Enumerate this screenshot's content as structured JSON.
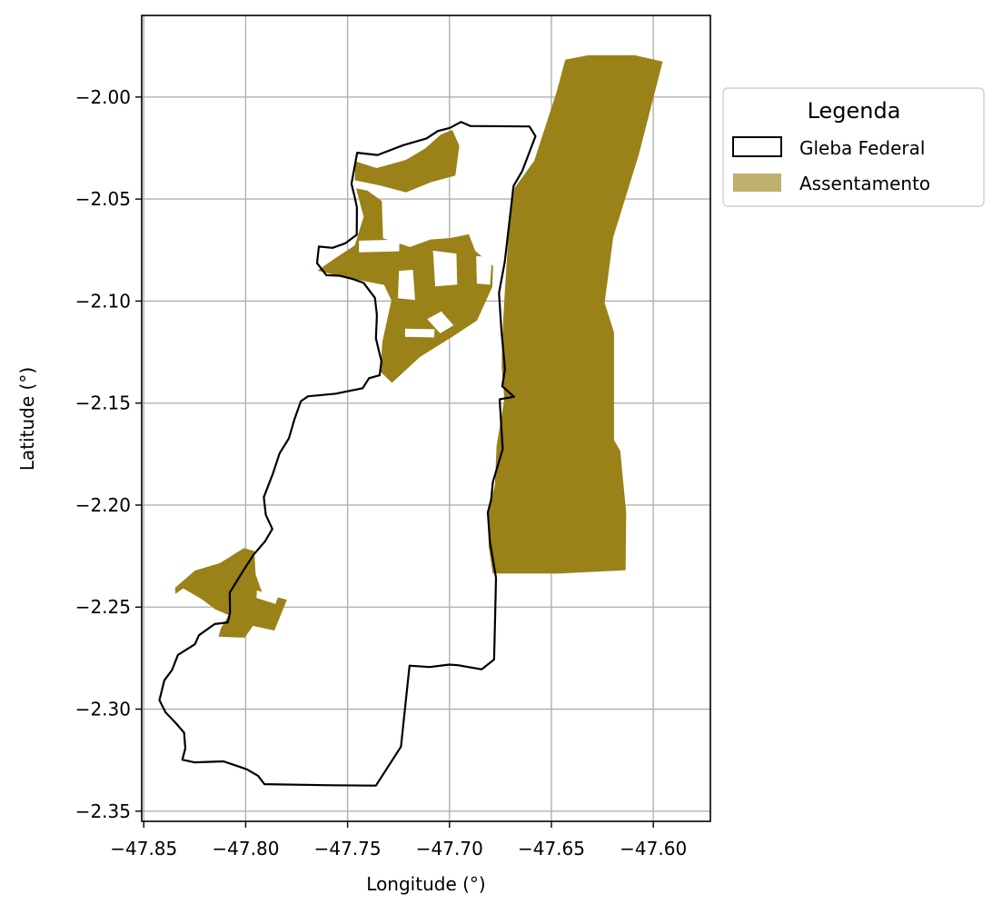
{
  "chart_data": {
    "type": "map",
    "xlabel": "Longitude (°)",
    "ylabel": "Latitude (°)",
    "xlim": [
      -47.851,
      -47.572
    ],
    "ylim": [
      -2.355,
      -1.96
    ],
    "xticks": [
      -47.85,
      -47.8,
      -47.75,
      -47.7,
      -47.65,
      -47.6
    ],
    "xtick_labels": [
      "−47.85",
      "−47.80",
      "−47.75",
      "−47.70",
      "−47.65",
      "−47.60"
    ],
    "yticks": [
      -2.0,
      -2.05,
      -2.1,
      -2.15,
      -2.2,
      -2.25,
      -2.3,
      -2.35
    ],
    "ytick_labels": [
      "−2.00",
      "−2.05",
      "−2.10",
      "−2.15",
      "−2.20",
      "−2.25",
      "−2.30",
      "−2.35"
    ],
    "grid": true,
    "legend": {
      "title": "Legenda",
      "placement": "outside-right-top",
      "entries": [
        {
          "label": "Gleba Federal",
          "style": "outline",
          "color": "#000000"
        },
        {
          "label": "Assentamento",
          "style": "fill",
          "color": "#bfb06e"
        }
      ]
    },
    "colors": {
      "assentamento_fill": "#9a8118",
      "gleba_edge": "#000000",
      "grid": "#b0b0b0"
    },
    "gleba_federal": [
      [
        -47.7453,
        -2.0273
      ],
      [
        -47.7353,
        -2.0284
      ],
      [
        -47.7227,
        -2.0236
      ],
      [
        -47.7113,
        -2.0203
      ],
      [
        -47.7058,
        -2.0167
      ],
      [
        -47.6997,
        -2.0151
      ],
      [
        -47.6944,
        -2.0122
      ],
      [
        -47.6897,
        -2.0142
      ],
      [
        -47.6608,
        -2.0144
      ],
      [
        -47.6578,
        -2.0192
      ],
      [
        -47.6644,
        -2.0364
      ],
      [
        -47.6686,
        -2.0436
      ],
      [
        -47.6729,
        -2.0809
      ],
      [
        -47.6757,
        -2.0961
      ],
      [
        -47.6745,
        -2.1146
      ],
      [
        -47.6731,
        -2.1298
      ],
      [
        -47.6728,
        -2.1336
      ],
      [
        -47.6741,
        -2.1418
      ],
      [
        -47.6683,
        -2.1469
      ],
      [
        -47.6754,
        -2.1481
      ],
      [
        -47.6739,
        -2.1725
      ],
      [
        -47.6787,
        -2.1886
      ],
      [
        -47.6796,
        -2.1974
      ],
      [
        -47.6812,
        -2.2036
      ],
      [
        -47.6802,
        -2.2176
      ],
      [
        -47.6772,
        -2.2356
      ],
      [
        -47.6777,
        -2.2592
      ],
      [
        -47.6781,
        -2.2757
      ],
      [
        -47.6842,
        -2.2805
      ],
      [
        -47.6958,
        -2.2785
      ],
      [
        -47.7002,
        -2.2782
      ],
      [
        -47.7097,
        -2.2794
      ],
      [
        -47.7196,
        -2.2787
      ],
      [
        -47.7238,
        -2.3184
      ],
      [
        -47.7361,
        -2.3375
      ],
      [
        -47.7578,
        -2.3373
      ],
      [
        -47.7908,
        -2.3368
      ],
      [
        -47.7939,
        -2.3327
      ],
      [
        -47.7995,
        -2.3295
      ],
      [
        -47.8109,
        -2.3256
      ],
      [
        -47.8252,
        -2.3261
      ],
      [
        -47.8311,
        -2.3248
      ],
      [
        -47.8296,
        -2.3193
      ],
      [
        -47.8302,
        -2.3116
      ],
      [
        -47.8344,
        -2.3067
      ],
      [
        -47.8393,
        -2.3016
      ],
      [
        -47.8423,
        -2.2956
      ],
      [
        -47.8399,
        -2.2859
      ],
      [
        -47.8361,
        -2.2808
      ],
      [
        -47.8332,
        -2.2734
      ],
      [
        -47.8249,
        -2.2682
      ],
      [
        -47.8229,
        -2.2638
      ],
      [
        -47.8152,
        -2.2583
      ],
      [
        -47.8088,
        -2.2575
      ],
      [
        -47.8077,
        -2.2528
      ],
      [
        -47.8078,
        -2.2429
      ],
      [
        -47.8026,
        -2.2344
      ],
      [
        -47.7962,
        -2.2244
      ],
      [
        -47.7905,
        -2.2178
      ],
      [
        -47.7869,
        -2.2117
      ],
      [
        -47.7901,
        -2.2048
      ],
      [
        -47.7911,
        -2.1961
      ],
      [
        -47.7867,
        -2.1847
      ],
      [
        -47.7834,
        -2.1747
      ],
      [
        -47.7788,
        -2.1673
      ],
      [
        -47.7761,
        -2.158
      ],
      [
        -47.7729,
        -2.1491
      ],
      [
        -47.7694,
        -2.1467
      ],
      [
        -47.7558,
        -2.1454
      ],
      [
        -47.7426,
        -2.1427
      ],
      [
        -47.7395,
        -2.1378
      ],
      [
        -47.7343,
        -2.1364
      ],
      [
        -47.7334,
        -2.1296
      ],
      [
        -47.7361,
        -2.1183
      ],
      [
        -47.7356,
        -2.1069
      ],
      [
        -47.7366,
        -2.0984
      ],
      [
        -47.7421,
        -2.0911
      ],
      [
        -47.7475,
        -2.0892
      ],
      [
        -47.7539,
        -2.0876
      ],
      [
        -47.7604,
        -2.0873
      ],
      [
        -47.765,
        -2.0814
      ],
      [
        -47.7641,
        -2.0733
      ],
      [
        -47.7574,
        -2.0739
      ],
      [
        -47.7511,
        -2.0717
      ],
      [
        -47.7455,
        -2.0675
      ],
      [
        -47.7454,
        -2.0541
      ],
      [
        -47.7466,
        -2.0485
      ],
      [
        -47.7481,
        -2.0425
      ],
      [
        -47.7453,
        -2.0273
      ]
    ],
    "assentamento": [
      [
        [
          -47.6584,
          -2.0312
        ],
        [
          -47.6474,
          -1.9974
        ],
        [
          -47.6432,
          -1.9817
        ],
        [
          -47.6321,
          -1.9795
        ],
        [
          -47.6092,
          -1.9795
        ],
        [
          -47.5954,
          -1.9826
        ],
        [
          -47.6071,
          -2.0282
        ],
        [
          -47.6197,
          -2.0688
        ],
        [
          -47.6239,
          -2.1009
        ],
        [
          -47.6193,
          -2.1154
        ],
        [
          -47.6193,
          -2.1681
        ],
        [
          -47.6162,
          -2.1735
        ],
        [
          -47.6133,
          -2.2038
        ],
        [
          -47.6136,
          -2.2319
        ],
        [
          -47.6456,
          -2.2335
        ],
        [
          -47.6788,
          -2.2335
        ],
        [
          -47.6808,
          -2.2201
        ],
        [
          -47.6808,
          -2.2036
        ],
        [
          -47.6777,
          -2.1902
        ],
        [
          -47.6769,
          -2.1711
        ],
        [
          -47.6731,
          -2.1479
        ],
        [
          -47.6744,
          -2.1322
        ],
        [
          -47.6741,
          -2.1175
        ],
        [
          -47.6729,
          -2.096
        ],
        [
          -47.6707,
          -2.0627
        ],
        [
          -47.6681,
          -2.0446
        ]
      ],
      [
        [
          -47.7461,
          -2.0315
        ],
        [
          -47.7358,
          -2.0348
        ],
        [
          -47.7214,
          -2.0308
        ],
        [
          -47.7118,
          -2.0251
        ],
        [
          -47.7043,
          -2.0184
        ],
        [
          -47.6986,
          -2.0161
        ],
        [
          -47.6952,
          -2.0238
        ],
        [
          -47.6971,
          -2.0385
        ],
        [
          -47.7091,
          -2.0417
        ],
        [
          -47.7213,
          -2.0467
        ],
        [
          -47.7338,
          -2.0434
        ],
        [
          -47.7465,
          -2.0408
        ]
      ],
      [
        [
          -47.7458,
          -2.0448
        ],
        [
          -47.7421,
          -2.0587
        ],
        [
          -47.7465,
          -2.0727
        ],
        [
          -47.7574,
          -2.0799
        ],
        [
          -47.7647,
          -2.0851
        ],
        [
          -47.752,
          -2.0882
        ],
        [
          -47.7321,
          -2.0921
        ],
        [
          -47.7285,
          -2.0997
        ],
        [
          -47.7329,
          -2.1197
        ],
        [
          -47.734,
          -2.1345
        ],
        [
          -47.7282,
          -2.1401
        ],
        [
          -47.7145,
          -2.1274
        ],
        [
          -47.6983,
          -2.1173
        ],
        [
          -47.6865,
          -2.1095
        ],
        [
          -47.679,
          -2.093
        ],
        [
          -47.6786,
          -2.0828
        ],
        [
          -47.6874,
          -2.0754
        ],
        [
          -47.6905,
          -2.0673
        ],
        [
          -47.6996,
          -2.0691
        ],
        [
          -47.7093,
          -2.0698
        ],
        [
          -47.7194,
          -2.0735
        ],
        [
          -47.7326,
          -2.0692
        ],
        [
          -47.7332,
          -2.051
        ],
        [
          -47.7403,
          -2.0458
        ]
      ],
      [
        [
          -47.8009,
          -2.2211
        ],
        [
          -47.8127,
          -2.2285
        ],
        [
          -47.8249,
          -2.2321
        ],
        [
          -47.8346,
          -2.2405
        ],
        [
          -47.8345,
          -2.2435
        ],
        [
          -47.8306,
          -2.2408
        ],
        [
          -47.8213,
          -2.2463
        ],
        [
          -47.8147,
          -2.2512
        ],
        [
          -47.8083,
          -2.2539
        ],
        [
          -47.8122,
          -2.2604
        ],
        [
          -47.8133,
          -2.2645
        ],
        [
          -47.8005,
          -2.265
        ],
        [
          -47.7964,
          -2.2592
        ],
        [
          -47.7859,
          -2.2615
        ],
        [
          -47.7798,
          -2.2464
        ],
        [
          -47.7918,
          -2.2432
        ],
        [
          -47.7951,
          -2.234
        ],
        [
          -47.7958,
          -2.2225
        ]
      ]
    ],
    "assentamento_gaps": [
      [
        [
          -47.7444,
          -2.0704
        ],
        [
          -47.7246,
          -2.0699
        ],
        [
          -47.7247,
          -2.0756
        ],
        [
          -47.7444,
          -2.0761
        ]
      ],
      [
        [
          -47.7081,
          -2.0753
        ],
        [
          -47.6966,
          -2.0767
        ],
        [
          -47.6962,
          -2.0919
        ],
        [
          -47.707,
          -2.0928
        ]
      ],
      [
        [
          -47.6869,
          -2.0779
        ],
        [
          -47.6792,
          -2.0785
        ],
        [
          -47.6801,
          -2.092
        ],
        [
          -47.6866,
          -2.0914
        ]
      ],
      [
        [
          -47.7248,
          -2.0852
        ],
        [
          -47.7179,
          -2.0847
        ],
        [
          -47.7169,
          -2.0995
        ],
        [
          -47.7253,
          -2.0986
        ]
      ],
      [
        [
          -47.7109,
          -2.1088
        ],
        [
          -47.7046,
          -2.1158
        ],
        [
          -47.698,
          -2.1119
        ],
        [
          -47.704,
          -2.1051
        ]
      ],
      [
        [
          -47.7218,
          -2.1135
        ],
        [
          -47.7073,
          -2.1138
        ],
        [
          -47.7075,
          -2.1178
        ],
        [
          -47.7218,
          -2.1175
        ]
      ],
      [
        [
          -47.7945,
          -2.2418
        ],
        [
          -47.7842,
          -2.2451
        ],
        [
          -47.7854,
          -2.2485
        ],
        [
          -47.7947,
          -2.2455
        ]
      ]
    ]
  }
}
